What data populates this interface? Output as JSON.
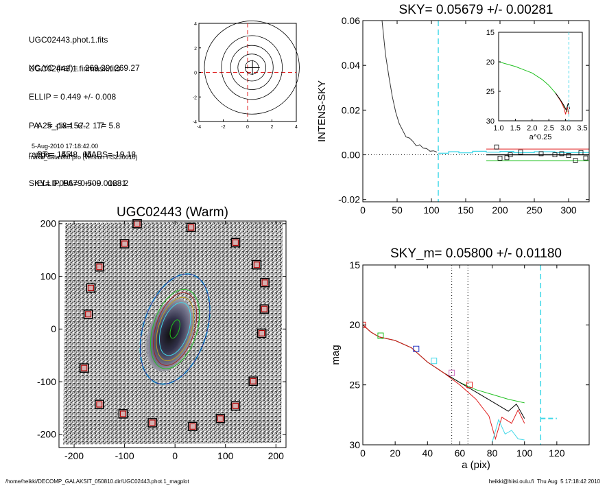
{
  "header": {
    "files": [
      "UGC02443.phot.1.fits",
      "UGC02443.1.finmask.fits"
    ],
    "params": [
      "XC,YC (iraf)=   269.29, 269.27",
      "ELLIP = 0.449 +/- 0.008",
      "PA    = -18.1 +/-   1.7",
      "range=   55.-   65.",
      "SKY= 0.05679 +/- 0.00281"
    ],
    "results": [
      "A25_pix= 52.2   T= 5.8",
      "BT=  14.48   MABS=-19.18",
      "ELLIP, PA= 0.509   163.2"
    ],
    "date": "5-Aug-2010 17:18:42.00",
    "program": "make_datalist0.pro (version HS230610)"
  },
  "footer": {
    "path": "/home/heikki/DECOMP_GALAKSIT_050810.dir/UGC02443.phot.1_magplot",
    "stamp": "heikki@hiisi.oulu.fi  Thu Aug  5 17:18:42 2010"
  },
  "colors": {
    "red": "#e02020",
    "green": "#20c020",
    "cyan": "#40d8e8",
    "blue": "#2030c0",
    "pink": "#d070c0"
  },
  "chart_data": [
    {
      "id": "contour",
      "type": "contour",
      "x_ticks": [
        "-4",
        "-2",
        "0",
        "2",
        "4"
      ],
      "y_ticks": [
        "4",
        "2",
        "0",
        "-2",
        "-4"
      ],
      "xlim": [
        -4,
        4
      ],
      "ylim": [
        -4,
        4
      ],
      "levels": [
        {
          "a": 0.55,
          "b": 0.55
        },
        {
          "a": 1.15,
          "b": 1.1
        },
        {
          "a": 1.75,
          "b": 1.8
        },
        {
          "a": 2.5,
          "b": 2.6
        },
        {
          "a": 3.9,
          "b": 3.8
        }
      ]
    },
    {
      "id": "sky",
      "type": "line",
      "title": "SKY= 0.05679 +/- 0.00281",
      "ylabel": "INTENS-SKY",
      "xlim": [
        0,
        330
      ],
      "ylim": [
        -0.021,
        0.06
      ],
      "x_ticks": [
        "0",
        "50",
        "100",
        "150",
        "200",
        "250",
        "300"
      ],
      "y_ticks": [
        "0.06",
        "0.04",
        "0.02",
        "0.00",
        "-0.02"
      ],
      "profile": [
        [
          28,
          0.06
        ],
        [
          33,
          0.045
        ],
        [
          38,
          0.035
        ],
        [
          43,
          0.026
        ],
        [
          48,
          0.019
        ],
        [
          53,
          0.014
        ],
        [
          58,
          0.011
        ],
        [
          63,
          0.008
        ],
        [
          68,
          0.0075
        ],
        [
          73,
          0.006
        ],
        [
          78,
          0.004
        ],
        [
          83,
          0.0045
        ],
        [
          88,
          0.003
        ],
        [
          93,
          0.0028
        ],
        [
          98,
          0.0016
        ],
        [
          103,
          0.0018
        ],
        [
          108,
          0.0012
        ]
      ],
      "sky_level": 0.0,
      "cyan_vline": 110,
      "squares": [
        [
          195,
          0.0035
        ],
        [
          200,
          -0.0015
        ],
        [
          210,
          -0.0013
        ],
        [
          215,
          0.0
        ],
        [
          230,
          0.0013
        ],
        [
          260,
          0.0005
        ],
        [
          280,
          0.0
        ],
        [
          290,
          0.0005
        ],
        [
          300,
          -0.0003
        ],
        [
          310,
          -0.0025
        ],
        [
          318,
          0.001
        ],
        [
          325,
          -0.0014
        ]
      ],
      "inset": {
        "xlabel": "a^0.25",
        "xlim": [
          1.0,
          3.5
        ],
        "ylim": [
          15,
          30
        ],
        "x_ticks": [
          "1.0",
          "1.5",
          "2.0",
          "2.5",
          "3.0",
          "3.5"
        ],
        "y_ticks": [
          "15",
          "20",
          "25",
          "30"
        ],
        "curve": [
          [
            1.0,
            20.0
          ],
          [
            1.5,
            20.8
          ],
          [
            2.0,
            21.9
          ],
          [
            2.3,
            23.0
          ],
          [
            2.5,
            24.0
          ],
          [
            2.7,
            25.3
          ],
          [
            2.85,
            26.5
          ],
          [
            2.95,
            27.5
          ],
          [
            3.05,
            28.5
          ]
        ]
      }
    },
    {
      "id": "image",
      "type": "scatter",
      "title": "UGC02443 (Warm)",
      "xlim": [
        -230,
        220
      ],
      "ylim": [
        -225,
        205
      ],
      "x_ticks": [
        "-200",
        "-100",
        "0",
        "100",
        "200"
      ],
      "y_ticks": [
        "200",
        "100",
        "0",
        "-100",
        "-200"
      ],
      "markers": [
        [
          -75,
          200
        ],
        [
          32,
          193
        ],
        [
          -100,
          162
        ],
        [
          120,
          164
        ],
        [
          -150,
          118
        ],
        [
          162,
          122
        ],
        [
          -167,
          78
        ],
        [
          178,
          88
        ],
        [
          -172,
          28
        ],
        [
          177,
          38
        ],
        [
          -180,
          -74
        ],
        [
          172,
          -8
        ],
        [
          155,
          -99
        ],
        [
          -150,
          -143
        ],
        [
          120,
          -146
        ],
        [
          -103,
          -161
        ],
        [
          90,
          -170
        ],
        [
          -45,
          -178
        ],
        [
          35,
          -185
        ]
      ]
    },
    {
      "id": "mag",
      "type": "line",
      "title": "SKY_m=  0.05800 +/- 0.01180",
      "xlabel": "a (pix)",
      "ylabel": "mag",
      "xlim": [
        0,
        140
      ],
      "ylim": [
        15,
        30
      ],
      "x_ticks": [
        "0",
        "20",
        "40",
        "60",
        "80",
        "100",
        "120"
      ],
      "y_ticks": [
        "15",
        "20",
        "25",
        "30"
      ],
      "dotted_lines": [
        55,
        65
      ],
      "cyan_vline": 110,
      "series": [
        {
          "color": "green",
          "values": [
            [
              0,
              20.0
            ],
            [
              5,
              20.6
            ],
            [
              10,
              21.0
            ],
            [
              20,
              21.3
            ],
            [
              30,
              21.9
            ],
            [
              40,
              23.1
            ],
            [
              50,
              24.0
            ],
            [
              60,
              24.8
            ],
            [
              70,
              25.4
            ],
            [
              80,
              25.8
            ],
            [
              90,
              26.2
            ],
            [
              100,
              26.5
            ]
          ]
        },
        {
          "color": "black",
          "values": [
            [
              0,
              20.0
            ],
            [
              5,
              20.6
            ],
            [
              10,
              21.0
            ],
            [
              20,
              21.3
            ],
            [
              30,
              21.9
            ],
            [
              40,
              23.1
            ],
            [
              50,
              24.0
            ],
            [
              60,
              24.8
            ],
            [
              70,
              25.6
            ],
            [
              80,
              26.4
            ],
            [
              85,
              26.8
            ],
            [
              90,
              27.2
            ],
            [
              95,
              26.6
            ],
            [
              100,
              27.8
            ]
          ]
        },
        {
          "color": "red",
          "values": [
            [
              0,
              20.0
            ],
            [
              5,
              20.6
            ],
            [
              10,
              21.0
            ],
            [
              20,
              21.3
            ],
            [
              30,
              21.9
            ],
            [
              40,
              23.1
            ],
            [
              50,
              24.0
            ],
            [
              60,
              25.0
            ],
            [
              70,
              26.2
            ],
            [
              78,
              27.6
            ],
            [
              82,
              29.5
            ],
            [
              86,
              27.7
            ],
            [
              92,
              28.2
            ],
            [
              96,
              27.1
            ],
            [
              100,
              28.2
            ]
          ]
        },
        {
          "color": "cyan",
          "values": [
            [
              80,
              29.8
            ],
            [
              84,
              27.9
            ],
            [
              88,
              29.1
            ],
            [
              92,
              28.8
            ],
            [
              96,
              29.5
            ],
            [
              100,
              29.6
            ]
          ]
        }
      ],
      "squares": [
        {
          "x": 0,
          "y": 20.0,
          "color": "red"
        },
        {
          "x": 11,
          "y": 20.9,
          "color": "green"
        },
        {
          "x": 33,
          "y": 22.0,
          "color": "blue"
        },
        {
          "x": 44,
          "y": 23.0,
          "color": "cyan"
        },
        {
          "x": 55,
          "y": 24.0,
          "color": "pink"
        },
        {
          "x": 66,
          "y": 25.0,
          "color": "red"
        }
      ],
      "sky_segment": {
        "x": [
          110,
          120
        ],
        "y": 27.8
      }
    }
  ]
}
